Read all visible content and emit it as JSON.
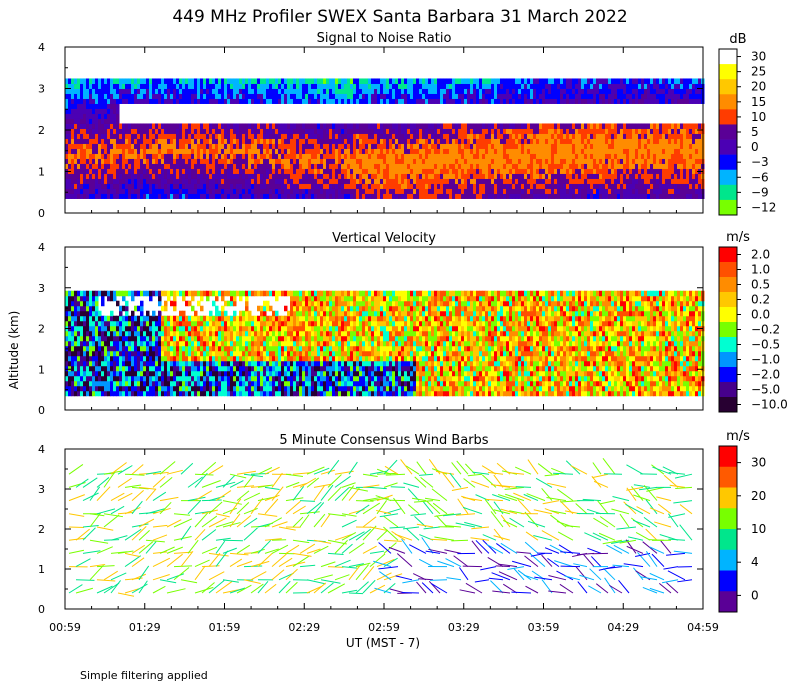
{
  "figure": {
    "title": "449 MHz Profiler SWEX Santa Barbara 31 March 2022",
    "ylabel": "Altitude (km)",
    "xlabel": "UT  (MST - 7)",
    "footnote": "Simple filtering applied"
  },
  "chart_data": [
    {
      "type": "heatmap",
      "title": "Signal to Noise Ratio",
      "x_ticks": [
        "00:59",
        "01:29",
        "01:59",
        "02:29",
        "02:59",
        "03:29",
        "03:59",
        "04:29",
        "04:59"
      ],
      "y_ticks": [
        0,
        1,
        2,
        3,
        4
      ],
      "ylim": [
        0,
        4
      ],
      "colorbar": {
        "unit": "dB",
        "labels": [
          "30",
          "25",
          "20",
          "15",
          "10",
          "5",
          "0",
          "−3",
          "−6",
          "−9",
          "−12"
        ],
        "colors": [
          "#ffffff",
          "#ffff00",
          "#ffc800",
          "#ff8c00",
          "#ff3c00",
          "#5a0096",
          "#4b00b4",
          "#0000ff",
          "#00b4ff",
          "#00e68c",
          "#78ff00"
        ]
      }
    },
    {
      "type": "heatmap",
      "title": "Vertical Velocity",
      "x_ticks": [
        "00:59",
        "01:29",
        "01:59",
        "02:29",
        "02:59",
        "03:29",
        "03:59",
        "04:29",
        "04:59"
      ],
      "y_ticks": [
        0,
        1,
        2,
        3,
        4
      ],
      "ylim": [
        0,
        4
      ],
      "colorbar": {
        "unit": "m/s",
        "labels": [
          "2.0",
          "1.0",
          "0.5",
          "0.2",
          "0.0",
          "−0.2",
          "−0.5",
          "−1.0",
          "−2.0",
          "−5.0",
          "−10.0"
        ],
        "colors": [
          "#ff0000",
          "#ff5000",
          "#ff8c00",
          "#ffc800",
          "#ffff00",
          "#78ff00",
          "#00ffd2",
          "#0096ff",
          "#0000ff",
          "#46008c",
          "#280032"
        ]
      }
    },
    {
      "type": "scatter",
      "title": "5 Minute Consensus Wind Barbs",
      "x_ticks": [
        "00:59",
        "01:29",
        "01:59",
        "02:29",
        "02:59",
        "03:29",
        "03:59",
        "04:29",
        "04:59"
      ],
      "y_ticks": [
        0,
        1,
        2,
        3,
        4
      ],
      "ylim": [
        0,
        4
      ],
      "colorbar": {
        "unit": "m/s",
        "labels": [
          "30",
          "20",
          "10",
          "4",
          "0"
        ],
        "colors": [
          "#ff0000",
          "#ff5a00",
          "#ffc800",
          "#78ff00",
          "#00e68c",
          "#00b4ff",
          "#0000ff",
          "#5a0096"
        ]
      }
    }
  ]
}
